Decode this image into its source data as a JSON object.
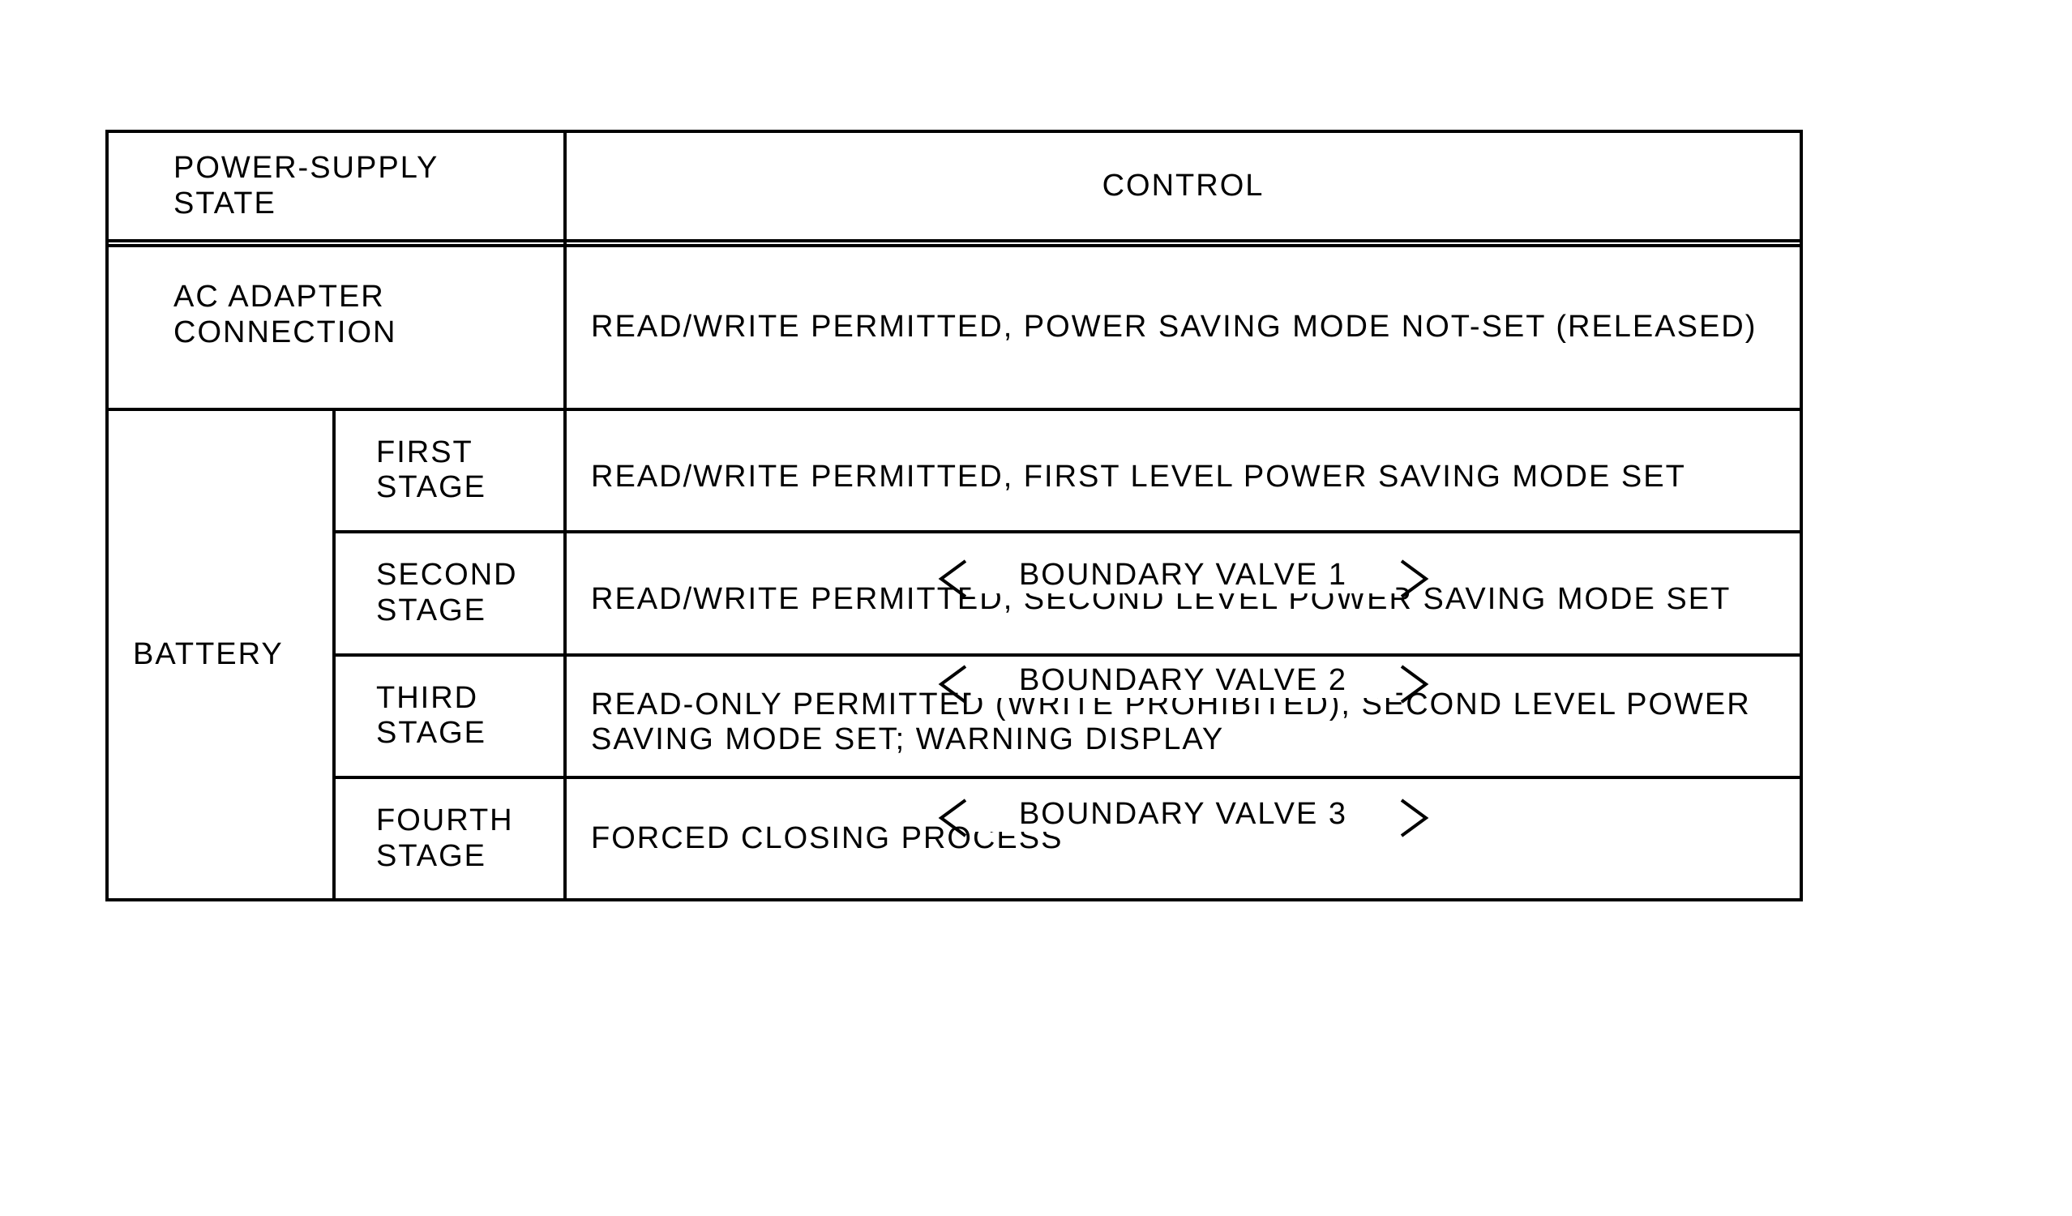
{
  "table": {
    "border_color": "#000000",
    "background_color": "#ffffff",
    "font_size_pt": 28,
    "header": {
      "state_label": "POWER-SUPPLY STATE",
      "control_label": "CONTROL"
    },
    "rows": {
      "ac": {
        "state_label": "AC ADAPTER CONNECTION",
        "control_text": "READ/WRITE PERMITTED, POWER SAVING MODE NOT-SET (RELEASED)"
      },
      "battery": {
        "state_label": "BATTERY",
        "stages": [
          {
            "stage_label": "FIRST STAGE",
            "control_text": "READ/WRITE PERMITTED, FIRST LEVEL POWER SAVING MODE SET"
          },
          {
            "stage_label": "SECOND STAGE",
            "control_text": "READ/WRITE PERMITTED, SECOND LEVEL POWER SAVING MODE SET"
          },
          {
            "stage_label": "THIRD STAGE",
            "control_text": "READ-ONLY PERMITTED (WRITE PROHIBITED), SECOND LEVEL POWER SAVING MODE SET; WARNING DISPLAY"
          },
          {
            "stage_label": "FOURTH STAGE",
            "control_text": "FORCED CLOSING PROCESS"
          }
        ],
        "boundaries": [
          {
            "label": "BOUNDARY VALVE 1"
          },
          {
            "label": "BOUNDARY VALVE 2"
          },
          {
            "label": "BOUNDARY VALVE 3"
          }
        ]
      }
    }
  }
}
